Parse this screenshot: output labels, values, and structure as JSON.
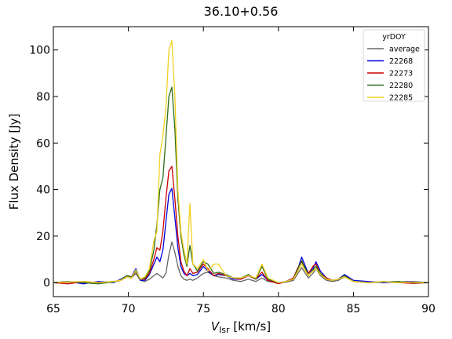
{
  "chart_data": {
    "type": "line",
    "title": "36.10+0.56",
    "xlabel": "V",
    "xlabel_sub": "lsr",
    "xlabel_unit": " [km/s]",
    "ylabel": "Flux Density [Jy]",
    "xlim": [
      65,
      90
    ],
    "ylim": [
      -6,
      110
    ],
    "xticks": [
      65,
      70,
      75,
      80,
      85,
      90
    ],
    "yticks": [
      0,
      20,
      40,
      60,
      80,
      100
    ],
    "grid": false,
    "legend_title": "yrDOY",
    "legend_position": "top-right",
    "series": [
      {
        "name": "average",
        "color": "#666666",
        "x": [
          65,
          66,
          67,
          68,
          69,
          69.5,
          69.9,
          70.2,
          70.5,
          70.8,
          71.1,
          71.4,
          71.7,
          71.9,
          72.1,
          72.3,
          72.5,
          72.7,
          72.9,
          73.1,
          73.3,
          73.5,
          73.7,
          73.9,
          74.1,
          74.3,
          74.6,
          75,
          75.3,
          75.7,
          76,
          76.5,
          77,
          77.5,
          78,
          78.5,
          78.9,
          79.3,
          80,
          80.5,
          81,
          81.3,
          81.55,
          81.8,
          82,
          82.3,
          82.5,
          82.8,
          83.2,
          83.6,
          84,
          84.4,
          85,
          86,
          87,
          88,
          89,
          90
        ],
        "y": [
          0,
          0.2,
          0,
          0.2,
          0.3,
          1,
          2.5,
          2,
          4,
          1,
          0.5,
          1.5,
          3,
          4,
          3,
          2,
          4,
          12,
          17.5,
          13,
          7,
          3,
          1.5,
          1,
          1.5,
          1,
          2,
          4,
          4.5,
          3,
          2.5,
          2,
          1,
          0.5,
          1.5,
          0.5,
          2,
          0.5,
          0,
          0.2,
          1,
          4,
          6.5,
          4,
          2,
          4,
          6,
          3,
          1,
          0.5,
          1,
          2.5,
          0.5,
          0,
          0.2,
          0,
          0.2,
          0
        ]
      },
      {
        "name": "22268",
        "color": "#0000dd",
        "x": [
          65,
          66,
          67,
          68,
          69,
          69.5,
          69.9,
          70.2,
          70.5,
          70.8,
          71.1,
          71.4,
          71.7,
          71.9,
          72.1,
          72.3,
          72.5,
          72.7,
          72.9,
          73.1,
          73.3,
          73.5,
          73.7,
          73.9,
          74.1,
          74.3,
          74.6,
          75,
          75.3,
          75.7,
          76,
          76.5,
          77,
          77.5,
          78,
          78.5,
          78.9,
          79.3,
          80,
          80.5,
          81,
          81.3,
          81.55,
          81.8,
          82,
          82.3,
          82.5,
          82.8,
          83.2,
          83.6,
          84,
          84.4,
          85,
          86,
          87,
          88,
          89,
          90
        ],
        "y": [
          0,
          0.5,
          -0.5,
          0.5,
          0,
          1.5,
          3,
          2.5,
          6,
          1,
          1,
          3.5,
          8,
          11,
          9,
          14,
          26,
          38,
          40.5,
          28,
          15,
          7,
          4,
          3,
          4,
          3,
          3.5,
          7,
          5,
          3,
          3.5,
          3,
          1.5,
          1.5,
          3,
          1.5,
          3.5,
          1,
          0,
          0.5,
          2,
          6,
          11,
          7,
          4,
          6,
          9,
          5,
          2,
          1,
          1.5,
          3.5,
          1,
          0.5,
          0,
          0.3,
          0.5,
          0
        ]
      },
      {
        "name": "22273",
        "color": "#cc0000",
        "x": [
          65,
          66,
          67,
          68,
          69,
          69.5,
          69.9,
          70.2,
          70.5,
          70.8,
          71.1,
          71.4,
          71.7,
          71.9,
          72.1,
          72.3,
          72.5,
          72.7,
          72.9,
          73.1,
          73.3,
          73.5,
          73.7,
          73.9,
          74.1,
          74.3,
          74.6,
          75,
          75.3,
          75.7,
          76,
          76.5,
          77,
          77.5,
          78,
          78.5,
          78.9,
          79.3,
          80,
          80.5,
          81,
          81.3,
          81.55,
          81.8,
          82,
          82.3,
          82.5,
          82.8,
          83.2,
          83.6,
          84,
          84.4,
          85,
          86,
          87,
          88,
          89,
          90
        ],
        "y": [
          0,
          -0.5,
          0.5,
          0,
          0.5,
          1,
          2.5,
          2,
          5,
          1.5,
          1.5,
          4,
          10,
          15,
          14,
          22,
          36,
          48,
          50,
          36,
          20,
          9,
          5,
          3,
          6,
          4,
          4.5,
          8,
          6,
          3,
          4,
          3,
          2,
          1.5,
          3,
          1.5,
          4.5,
          1,
          -0.5,
          0.5,
          2,
          6.5,
          9,
          6,
          4,
          7,
          8,
          4,
          2,
          1,
          1.5,
          3,
          0.5,
          0,
          0.5,
          0,
          -0.3,
          0
        ]
      },
      {
        "name": "22280",
        "color": "#2d6e1a",
        "x": [
          65,
          66,
          67,
          68,
          69,
          69.5,
          69.9,
          70.2,
          70.5,
          70.8,
          71.1,
          71.4,
          71.7,
          71.9,
          72.1,
          72.3,
          72.5,
          72.7,
          72.9,
          73.1,
          73.3,
          73.5,
          73.7,
          73.9,
          74.1,
          74.3,
          74.6,
          75,
          75.3,
          75.7,
          76,
          76.5,
          77,
          77.5,
          78,
          78.5,
          78.9,
          79.3,
          80,
          80.5,
          81,
          81.3,
          81.55,
          81.8,
          82,
          82.3,
          82.5,
          82.8,
          83.2,
          83.6,
          84,
          84.4,
          85,
          86,
          87,
          88,
          89,
          90
        ],
        "y": [
          0,
          0.5,
          0,
          -0.5,
          0.3,
          1.2,
          3,
          2.5,
          5,
          1.5,
          2,
          5,
          14,
          25,
          40,
          45,
          62,
          80,
          84,
          66,
          36,
          20,
          12,
          7,
          16,
          8,
          5,
          9,
          8,
          4,
          4.5,
          3.5,
          2,
          2,
          3.5,
          1.5,
          7,
          1.5,
          0,
          0.5,
          1.5,
          6,
          9.5,
          6,
          3,
          5.5,
          7,
          4,
          1.5,
          1,
          1.5,
          3,
          0.5,
          0,
          0.3,
          0.5,
          0,
          0
        ]
      },
      {
        "name": "22285",
        "color": "#f0d020",
        "x": [
          65,
          66,
          67,
          68,
          69,
          69.5,
          69.9,
          70.2,
          70.5,
          70.8,
          71.1,
          71.4,
          71.7,
          71.9,
          72.1,
          72.3,
          72.5,
          72.7,
          72.9,
          73.1,
          73.3,
          73.5,
          73.7,
          73.9,
          74.1,
          74.3,
          74.6,
          75,
          75.3,
          75.7,
          76,
          76.5,
          77,
          77.5,
          78,
          78.5,
          78.9,
          79.3,
          80,
          80.5,
          81,
          81.3,
          81.55,
          81.8,
          82,
          82.3,
          82.5,
          82.8,
          83.2,
          83.6,
          84,
          84.4,
          85,
          86,
          87,
          88,
          89,
          90
        ],
        "y": [
          0,
          0.3,
          0.5,
          0,
          0.5,
          1,
          2.5,
          2,
          5.5,
          1.5,
          2.5,
          6,
          18,
          22,
          55,
          63,
          75,
          100,
          104,
          80,
          40,
          22,
          14,
          8,
          34,
          8,
          6,
          10,
          5,
          8,
          8,
          3,
          2,
          2,
          3,
          2,
          8,
          2,
          0,
          0.5,
          1.5,
          5,
          8,
          5,
          3,
          5,
          6,
          3.5,
          1.5,
          1,
          1.5,
          2.5,
          0.5,
          0,
          0.5,
          0,
          0.3,
          0
        ]
      }
    ]
  }
}
